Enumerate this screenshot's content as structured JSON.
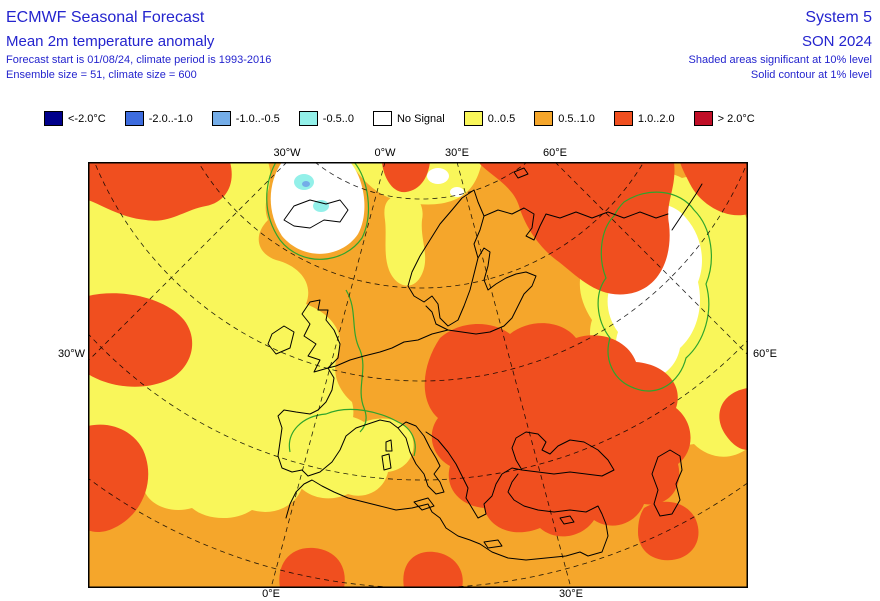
{
  "header": {
    "title": "ECMWF Seasonal Forecast",
    "subtitle": "Mean 2m temperature anomaly",
    "forecast_info": "Forecast start is 01/08/24, climate period is 1993-2016",
    "ensemble_info": "Ensemble size = 51, climate size = 600",
    "system": "System 5",
    "season": "SON 2024",
    "significance_note": "Shaded areas significant at 10% level",
    "contour_note": "Solid contour at 1% level"
  },
  "legend": {
    "items": [
      {
        "label": "<-2.0°C",
        "color": "#00008B"
      },
      {
        "label": "-2.0..-1.0",
        "color": "#3D6CDE"
      },
      {
        "label": "-1.0..-0.5",
        "color": "#74ADE8"
      },
      {
        "label": "-0.5..0",
        "color": "#93F0E9"
      },
      {
        "label": "No Signal",
        "color": "#FFFFFF"
      },
      {
        "label": "0..0.5",
        "color": "#F9F65A"
      },
      {
        "label": "0.5..1.0",
        "color": "#F5A62B"
      },
      {
        "label": "1.0..2.0",
        "color": "#F04F1F"
      },
      {
        "label": "> 2.0°C",
        "color": "#C00E27"
      }
    ]
  },
  "map": {
    "labels": {
      "top": [
        "30°W",
        "0°W",
        "30°E",
        "60°E"
      ],
      "left": "30°W",
      "right": "60°E",
      "bottom": [
        "0°E",
        "30°E"
      ]
    }
  },
  "palette": {
    "navy": "#00008B",
    "blue": "#3D6CDE",
    "lightblue": "#74ADE8",
    "cyan": "#93F0E9",
    "white": "#FFFFFF",
    "yellow": "#F9F65A",
    "orange": "#F5A62B",
    "redorange": "#F04F1F",
    "darkred": "#C00E27",
    "green": "#2FA42C",
    "textblue": "#2424CE"
  }
}
